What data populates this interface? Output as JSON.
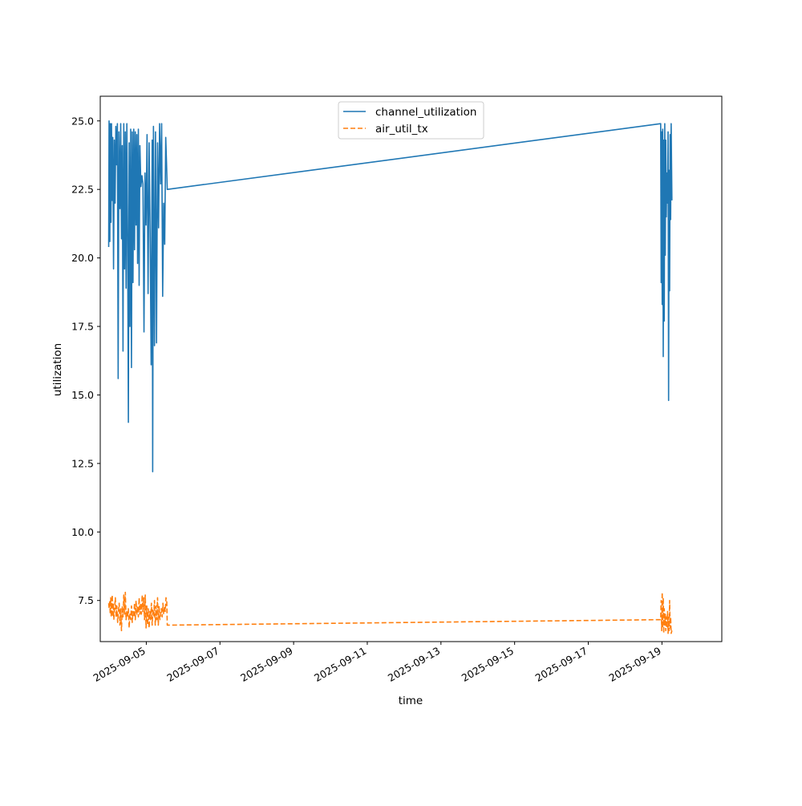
{
  "chart_data": {
    "type": "line",
    "title": "",
    "xlabel": "time",
    "ylabel": "utilization",
    "x_axis_kind": "date",
    "xlim": [
      "2025-09-03T18:00",
      "2025-09-20T15:00"
    ],
    "ylim": [
      6.0,
      25.9
    ],
    "x_ticks": [
      "2025-09-05",
      "2025-09-07",
      "2025-09-09",
      "2025-09-11",
      "2025-09-13",
      "2025-09-15",
      "2025-09-17",
      "2025-09-19"
    ],
    "y_ticks": [
      "7.5",
      "10.0",
      "12.5",
      "15.0",
      "17.5",
      "20.0",
      "22.5",
      "25.0"
    ],
    "grid": false,
    "legend_position": "upper center",
    "series": [
      {
        "name": "channel_utilization",
        "color": "#1f77b4",
        "style": "solid",
        "points": [
          [
            "2025-09-03T23:30",
            20.4
          ],
          [
            "2025-09-03T23:45",
            25.0
          ],
          [
            "2025-09-04T00:15",
            20.6
          ],
          [
            "2025-09-04T00:30",
            24.9
          ],
          [
            "2025-09-04T01:00",
            21.3
          ],
          [
            "2025-09-04T01:20",
            24.9
          ],
          [
            "2025-09-04T01:45",
            22.1
          ],
          [
            "2025-09-04T02:10",
            24.4
          ],
          [
            "2025-09-04T02:40",
            19.6
          ],
          [
            "2025-09-04T03:10",
            24.3
          ],
          [
            "2025-09-04T03:40",
            22.0
          ],
          [
            "2025-09-04T04:10",
            24.8
          ],
          [
            "2025-09-04T04:40",
            23.4
          ],
          [
            "2025-09-04T05:10",
            24.9
          ],
          [
            "2025-09-04T05:40",
            15.6
          ],
          [
            "2025-09-04T06:10",
            24.6
          ],
          [
            "2025-09-04T06:50",
            21.8
          ],
          [
            "2025-09-04T07:20",
            24.9
          ],
          [
            "2025-09-04T07:50",
            20.7
          ],
          [
            "2025-09-04T08:20",
            24.1
          ],
          [
            "2025-09-04T08:50",
            16.6
          ],
          [
            "2025-09-04T09:20",
            24.9
          ],
          [
            "2025-09-04T09:50",
            19.6
          ],
          [
            "2025-09-04T10:20",
            24.6
          ],
          [
            "2025-09-04T10:50",
            18.9
          ],
          [
            "2025-09-04T11:20",
            24.9
          ],
          [
            "2025-09-04T11:50",
            20.8
          ],
          [
            "2025-09-04T12:20",
            14.0
          ],
          [
            "2025-09-04T12:50",
            24.2
          ],
          [
            "2025-09-04T13:20",
            17.5
          ],
          [
            "2025-09-04T13:50",
            24.7
          ],
          [
            "2025-09-04T14:20",
            16.0
          ],
          [
            "2025-09-04T14:50",
            24.6
          ],
          [
            "2025-09-04T15:20",
            19.1
          ],
          [
            "2025-09-04T15:50",
            24.7
          ],
          [
            "2025-09-04T16:20",
            20.3
          ],
          [
            "2025-09-04T16:50",
            24.6
          ],
          [
            "2025-09-04T17:20",
            21.2
          ],
          [
            "2025-09-04T17:50",
            24.5
          ],
          [
            "2025-09-04T18:20",
            19.8
          ],
          [
            "2025-09-04T18:50",
            24.7
          ],
          [
            "2025-09-04T19:20",
            19.0
          ],
          [
            "2025-09-04T19:50",
            24.1
          ],
          [
            "2025-09-04T20:30",
            22.6
          ],
          [
            "2025-09-04T21:10",
            23.0
          ],
          [
            "2025-09-04T21:50",
            22.7
          ],
          [
            "2025-09-04T22:30",
            17.3
          ],
          [
            "2025-09-04T23:10",
            23.1
          ],
          [
            "2025-09-04T23:50",
            21.2
          ],
          [
            "2025-09-05T00:30",
            24.5
          ],
          [
            "2025-09-05T01:10",
            18.7
          ],
          [
            "2025-09-05T01:50",
            24.2
          ],
          [
            "2025-09-05T02:30",
            20.9
          ],
          [
            "2025-09-05T03:10",
            16.1
          ],
          [
            "2025-09-05T03:50",
            24.3
          ],
          [
            "2025-09-05T04:10",
            12.2
          ],
          [
            "2025-09-05T04:40",
            24.8
          ],
          [
            "2025-09-05T05:20",
            16.8
          ],
          [
            "2025-09-05T06:00",
            24.6
          ],
          [
            "2025-09-05T06:40",
            16.9
          ],
          [
            "2025-09-05T07:20",
            24.2
          ],
          [
            "2025-09-05T08:00",
            21.1
          ],
          [
            "2025-09-05T08:40",
            24.9
          ],
          [
            "2025-09-05T09:20",
            22.7
          ],
          [
            "2025-09-05T10:00",
            24.9
          ],
          [
            "2025-09-05T10:40",
            18.6
          ],
          [
            "2025-09-05T11:20",
            22.0
          ],
          [
            "2025-09-05T12:00",
            20.5
          ],
          [
            "2025-09-05T12:40",
            24.4
          ],
          [
            "2025-09-05T13:10",
            23.5
          ],
          [
            "2025-09-05T13:40",
            22.5
          ],
          [
            "2025-09-18T23:10",
            24.9
          ],
          [
            "2025-09-18T23:30",
            19.1
          ],
          [
            "2025-09-18T23:50",
            24.6
          ],
          [
            "2025-09-19T00:10",
            18.3
          ],
          [
            "2025-09-19T00:30",
            24.7
          ],
          [
            "2025-09-19T00:50",
            16.4
          ],
          [
            "2025-09-19T01:10",
            24.3
          ],
          [
            "2025-09-19T01:30",
            17.7
          ],
          [
            "2025-09-19T01:50",
            24.9
          ],
          [
            "2025-09-19T02:10",
            20.1
          ],
          [
            "2025-09-19T02:30",
            24.3
          ],
          [
            "2025-09-19T02:50",
            21.5
          ],
          [
            "2025-09-19T03:10",
            23.1
          ],
          [
            "2025-09-19T03:40",
            22.0
          ],
          [
            "2025-09-19T04:00",
            24.6
          ],
          [
            "2025-09-19T04:20",
            14.8
          ],
          [
            "2025-09-19T04:40",
            23.2
          ],
          [
            "2025-09-19T05:00",
            18.8
          ],
          [
            "2025-09-19T05:20",
            24.5
          ],
          [
            "2025-09-19T05:40",
            21.4
          ],
          [
            "2025-09-19T06:00",
            24.9
          ],
          [
            "2025-09-19T06:30",
            22.1
          ]
        ]
      },
      {
        "name": "air_util_tx",
        "color": "#ff7f0e",
        "style": "dashed",
        "points": [
          [
            "2025-09-03T23:30",
            7.4
          ],
          [
            "2025-09-03T23:50",
            7.2
          ],
          [
            "2025-09-04T00:10",
            7.5
          ],
          [
            "2025-09-04T00:30",
            7.0
          ],
          [
            "2025-09-04T00:50",
            7.6
          ],
          [
            "2025-09-04T01:10",
            6.9
          ],
          [
            "2025-09-04T01:30",
            7.3
          ],
          [
            "2025-09-04T01:50",
            7.7
          ],
          [
            "2025-09-04T02:10",
            6.9
          ],
          [
            "2025-09-04T02:30",
            7.4
          ],
          [
            "2025-09-04T02:50",
            6.8
          ],
          [
            "2025-09-04T03:20",
            7.2
          ],
          [
            "2025-09-04T03:50",
            7.6
          ],
          [
            "2025-09-04T04:20",
            6.9
          ],
          [
            "2025-09-04T04:50",
            7.3
          ],
          [
            "2025-09-04T05:20",
            6.7
          ],
          [
            "2025-09-04T05:50",
            7.1
          ],
          [
            "2025-09-04T06:20",
            7.4
          ],
          [
            "2025-09-04T06:50",
            6.6
          ],
          [
            "2025-09-04T07:20",
            7.2
          ],
          [
            "2025-09-04T07:50",
            6.4
          ],
          [
            "2025-09-04T08:20",
            7.3
          ],
          [
            "2025-09-04T08:50",
            6.9
          ],
          [
            "2025-09-04T09:20",
            7.7
          ],
          [
            "2025-09-04T09:50",
            7.0
          ],
          [
            "2025-09-04T10:20",
            7.8
          ],
          [
            "2025-09-04T10:50",
            6.8
          ],
          [
            "2025-09-04T11:20",
            7.1
          ],
          [
            "2025-09-04T11:50",
            6.9
          ],
          [
            "2025-09-04T12:20",
            7.2
          ],
          [
            "2025-09-04T12:50",
            6.5
          ],
          [
            "2025-09-04T13:20",
            7.0
          ],
          [
            "2025-09-04T13:50",
            6.8
          ],
          [
            "2025-09-04T14:20",
            7.3
          ],
          [
            "2025-09-04T14:50",
            6.7
          ],
          [
            "2025-09-04T15:20",
            7.1
          ],
          [
            "2025-09-04T15:50",
            6.9
          ],
          [
            "2025-09-04T16:20",
            7.4
          ],
          [
            "2025-09-04T16:50",
            6.8
          ],
          [
            "2025-09-04T17:20",
            7.5
          ],
          [
            "2025-09-04T17:50",
            7.0
          ],
          [
            "2025-09-04T18:20",
            7.3
          ],
          [
            "2025-09-04T18:50",
            6.9
          ],
          [
            "2025-09-04T19:20",
            7.6
          ],
          [
            "2025-09-04T19:50",
            7.0
          ],
          [
            "2025-09-04T20:20",
            7.4
          ],
          [
            "2025-09-04T20:50",
            7.0
          ],
          [
            "2025-09-04T21:20",
            7.7
          ],
          [
            "2025-09-04T21:50",
            7.1
          ],
          [
            "2025-09-04T22:20",
            7.6
          ],
          [
            "2025-09-04T22:50",
            6.8
          ],
          [
            "2025-09-04T23:20",
            7.7
          ],
          [
            "2025-09-04T23:50",
            6.5
          ],
          [
            "2025-09-05T00:20",
            7.3
          ],
          [
            "2025-09-05T00:50",
            6.6
          ],
          [
            "2025-09-05T01:20",
            7.2
          ],
          [
            "2025-09-05T01:50",
            6.5
          ],
          [
            "2025-09-05T02:20",
            7.1
          ],
          [
            "2025-09-05T02:50",
            6.8
          ],
          [
            "2025-09-05T03:20",
            7.4
          ],
          [
            "2025-09-05T03:50",
            6.6
          ],
          [
            "2025-09-05T04:20",
            7.2
          ],
          [
            "2025-09-05T04:50",
            6.9
          ],
          [
            "2025-09-05T05:20",
            7.5
          ],
          [
            "2025-09-05T05:50",
            6.6
          ],
          [
            "2025-09-05T06:20",
            7.3
          ],
          [
            "2025-09-05T06:50",
            6.8
          ],
          [
            "2025-09-05T07:20",
            7.6
          ],
          [
            "2025-09-05T07:50",
            6.6
          ],
          [
            "2025-09-05T08:20",
            7.3
          ],
          [
            "2025-09-05T08:50",
            6.8
          ],
          [
            "2025-09-05T09:20",
            7.0
          ],
          [
            "2025-09-05T09:50",
            7.2
          ],
          [
            "2025-09-05T10:20",
            6.9
          ],
          [
            "2025-09-05T10:50",
            7.4
          ],
          [
            "2025-09-05T11:20",
            7.0
          ],
          [
            "2025-09-05T11:50",
            7.3
          ],
          [
            "2025-09-05T12:20",
            7.1
          ],
          [
            "2025-09-05T12:50",
            7.6
          ],
          [
            "2025-09-05T13:20",
            7.5
          ],
          [
            "2025-09-05T13:40",
            6.6
          ],
          [
            "2025-09-18T23:10",
            6.8
          ],
          [
            "2025-09-18T23:30",
            7.5
          ],
          [
            "2025-09-18T23:50",
            6.4
          ],
          [
            "2025-09-19T00:10",
            7.8
          ],
          [
            "2025-09-19T00:30",
            6.5
          ],
          [
            "2025-09-19T00:50",
            7.6
          ],
          [
            "2025-09-19T01:10",
            6.3
          ],
          [
            "2025-09-19T01:30",
            7.2
          ],
          [
            "2025-09-19T01:50",
            6.6
          ],
          [
            "2025-09-19T02:10",
            7.0
          ],
          [
            "2025-09-19T02:30",
            6.4
          ],
          [
            "2025-09-19T02:50",
            6.9
          ],
          [
            "2025-09-19T03:10",
            6.5
          ],
          [
            "2025-09-19T03:40",
            7.1
          ],
          [
            "2025-09-19T04:00",
            6.3
          ],
          [
            "2025-09-19T04:20",
            6.9
          ],
          [
            "2025-09-19T04:40",
            6.4
          ],
          [
            "2025-09-19T05:00",
            7.5
          ],
          [
            "2025-09-19T05:20",
            6.5
          ],
          [
            "2025-09-19T05:40",
            6.9
          ],
          [
            "2025-09-19T06:00",
            6.3
          ],
          [
            "2025-09-19T06:30",
            6.4
          ]
        ]
      }
    ]
  }
}
